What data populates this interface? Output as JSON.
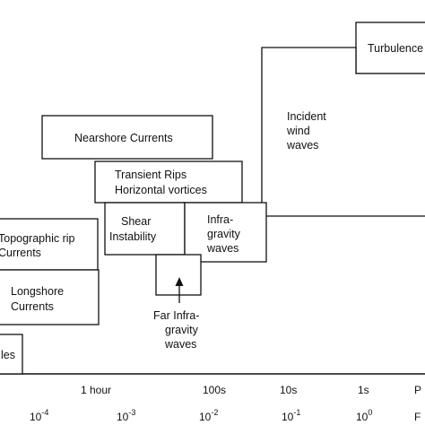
{
  "boxes": {
    "turbulence": "Turbulence",
    "incident": [
      "Incident",
      "wind",
      "waves"
    ],
    "nearshore": "Nearshore Currents",
    "transient": [
      "Transient Rips",
      "Horizontal vortices"
    ],
    "shear": [
      "Shear",
      "Instability"
    ],
    "infragravity": [
      "Infra-",
      "gravity",
      "waves"
    ],
    "topographic": [
      "Topographic rip",
      "Currents"
    ],
    "longshore": [
      "Longshore",
      "Currents"
    ],
    "tides": "les"
  },
  "annotation": {
    "far_infragravity": [
      "Far Infra-",
      "gravity",
      "waves"
    ]
  },
  "axis": {
    "period_ticks": [
      "1 hour",
      "100s",
      "10s",
      "1s"
    ],
    "period_label": "P",
    "frequency_ticks": [
      {
        "base": "10",
        "exp": "-4"
      },
      {
        "base": "10",
        "exp": "-3"
      },
      {
        "base": "10",
        "exp": "-2"
      },
      {
        "base": "10",
        "exp": "-1"
      },
      {
        "base": "10",
        "exp": "0"
      }
    ],
    "frequency_label": "F"
  }
}
